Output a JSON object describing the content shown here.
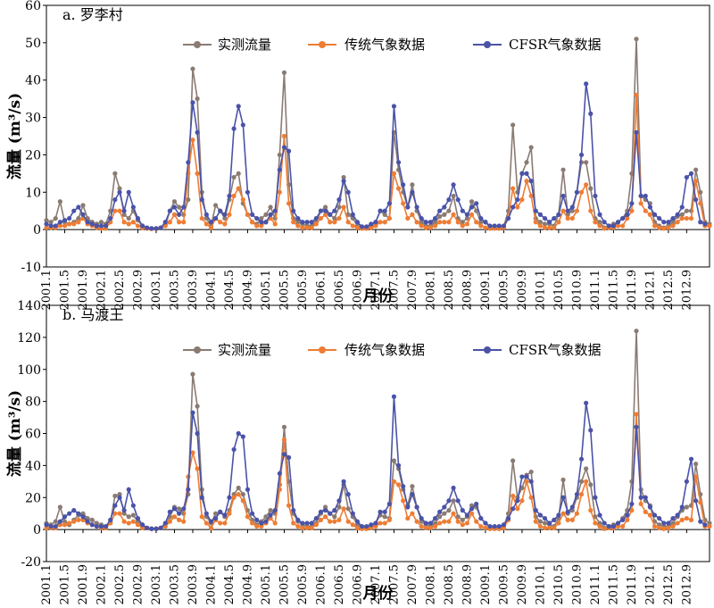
{
  "colors": {
    "observed": "#8a7b72",
    "traditional": "#ee7d34",
    "cfsr": "#4a53a8"
  },
  "chart_data": [
    {
      "type": "line",
      "title": "a. 罗李村",
      "xlabel": "月份",
      "ylabel": "流量 (m³/s)",
      "ylim": [
        -10,
        60
      ],
      "yticks": [
        -10,
        0,
        10,
        20,
        30,
        40,
        50,
        60
      ],
      "grid": false,
      "legend": "top",
      "x_tick_labels": [
        "2001.1",
        "2001.5",
        "2001.9",
        "2002.1",
        "2002.5",
        "2002.9",
        "2003.1",
        "2003.5",
        "2003.9",
        "2004.1",
        "2004.5",
        "2004.9",
        "2005.1",
        "2005.5",
        "2005.9",
        "2006.1",
        "2006.5",
        "2006.9",
        "2007.1",
        "2007.5",
        "2007.9",
        "2008.1",
        "2008.5",
        "2008.9",
        "2009.1",
        "2009.5",
        "2009.9",
        "2010.1",
        "2010.5",
        "2010.9",
        "2011.1",
        "2011.5",
        "2011.9",
        "2012.1",
        "2012.5",
        "2012.9"
      ],
      "series": [
        {
          "name": "实测流量",
          "color_key": "observed",
          "values": [
            2.5,
            2,
            3,
            7.5,
            2,
            1.5,
            2,
            3,
            6.5,
            3,
            2,
            1.5,
            2,
            1.5,
            5,
            15,
            11,
            4,
            3,
            5,
            2.5,
            1,
            0.5,
            0.3,
            0.3,
            0.4,
            1,
            5,
            7.5,
            6,
            4,
            8,
            43,
            35,
            10,
            3,
            1,
            6.5,
            5,
            3,
            8,
            14,
            15,
            7,
            4,
            2,
            1.5,
            3,
            4,
            6,
            3,
            20,
            42,
            12,
            3,
            2,
            1.5,
            1,
            1,
            2,
            5,
            6,
            4,
            3,
            6,
            14,
            4,
            3,
            1,
            0.5,
            0.5,
            1,
            2,
            5,
            4,
            3,
            26,
            16,
            10,
            6,
            12,
            5,
            2,
            1,
            1,
            2,
            3.5,
            4,
            5,
            9,
            3,
            2,
            3,
            7.5,
            5,
            2,
            2,
            0.5,
            0.5,
            0.5,
            0.8,
            5,
            28,
            10,
            15,
            18,
            22,
            3,
            2,
            1.5,
            1.5,
            1,
            4,
            16,
            4,
            5,
            10,
            18,
            18,
            11,
            3,
            2,
            0.5,
            1,
            1.5,
            2,
            3,
            5,
            15,
            51,
            9,
            8,
            7,
            2,
            1,
            0.5,
            1,
            2,
            3.5,
            4,
            5,
            5,
            16,
            10,
            2,
            1.5
          ]
        },
        {
          "name": "传统气象数据",
          "color_key": "traditional",
          "values": [
            0.5,
            0.5,
            0.5,
            1,
            1,
            1.5,
            1.5,
            2,
            3,
            1.5,
            1,
            0.5,
            0.3,
            0.3,
            2,
            5,
            5,
            2,
            1.5,
            2,
            1,
            0.5,
            0.3,
            0.2,
            0.2,
            0.5,
            1,
            2,
            4,
            2,
            2,
            15,
            24,
            15,
            3,
            1.5,
            0.5,
            3,
            2,
            1.5,
            4,
            9,
            11,
            8,
            4,
            2,
            1,
            1,
            2,
            3,
            1.5,
            10,
            25,
            7,
            2,
            1,
            0.5,
            0.5,
            0.5,
            1.5,
            3,
            4,
            2,
            2,
            3,
            6,
            2,
            1,
            0.5,
            0.3,
            0.3,
            0.5,
            1,
            2,
            2,
            3,
            15,
            11,
            7,
            3,
            4,
            2,
            1,
            0.5,
            0.5,
            1,
            2,
            2,
            2,
            4,
            2,
            1,
            1.5,
            4,
            2,
            1,
            0.5,
            0.3,
            0.3,
            0.3,
            0.5,
            3,
            11,
            6,
            8,
            13,
            9,
            2,
            1,
            0.5,
            0.5,
            0.5,
            2,
            5,
            3,
            3,
            5,
            10,
            12,
            5,
            2,
            1,
            0.3,
            0.5,
            0.5,
            1,
            1,
            3,
            5,
            36,
            7,
            5,
            4,
            1,
            0.5,
            0.3,
            0.5,
            1,
            2,
            3,
            3,
            3,
            13,
            7,
            1,
            1
          ]
        },
        {
          "name": "CFSR气象数据",
          "color_key": "cfsr",
          "values": [
            1.5,
            1,
            1,
            2,
            2.5,
            3,
            5,
            6,
            4,
            2,
            1.5,
            1,
            1,
            1,
            3,
            8,
            10,
            5,
            10,
            6,
            3,
            1,
            0.5,
            0.3,
            0.3,
            0.5,
            2,
            5,
            6,
            4,
            6,
            18,
            34,
            26,
            8,
            4,
            2,
            3,
            5,
            4,
            9,
            27,
            33,
            28,
            10,
            4,
            3,
            2,
            2,
            4,
            5,
            16,
            22,
            21,
            5,
            3,
            2,
            2,
            2,
            3,
            5,
            5,
            4,
            5,
            8,
            13,
            10,
            4,
            2,
            0.8,
            0.8,
            1.5,
            2,
            5,
            5,
            7,
            33,
            18,
            12,
            6,
            10,
            6,
            3,
            2,
            2,
            3,
            5,
            6,
            8,
            12,
            8,
            5,
            4,
            6,
            7,
            3,
            2,
            1,
            1,
            1,
            1,
            3,
            6,
            8,
            15,
            15,
            13,
            5,
            4,
            3,
            2,
            3,
            4,
            9,
            5,
            6,
            10,
            20,
            39,
            31,
            9,
            4,
            2,
            1,
            1,
            2,
            3,
            4,
            7,
            26,
            9,
            9,
            6,
            4,
            3,
            2,
            2,
            3,
            4,
            6,
            14,
            15,
            8,
            2,
            1.5
          ]
        }
      ]
    },
    {
      "type": "line",
      "title": "b. 马渡王",
      "xlabel": "月份",
      "ylabel": "流量 (m³/s)",
      "ylim": [
        -20,
        140
      ],
      "yticks": [
        -20,
        0,
        20,
        40,
        60,
        80,
        100,
        120,
        140
      ],
      "grid": false,
      "legend": "top",
      "x_tick_labels": [
        "2001.1",
        "2001.5",
        "2001.9",
        "2002.1",
        "2002.5",
        "2002.9",
        "2003.1",
        "2003.5",
        "2003.9",
        "2004.1",
        "2004.5",
        "2004.9",
        "2005.1",
        "2005.5",
        "2005.9",
        "2006.1",
        "2006.5",
        "2006.9",
        "2007.1",
        "2007.5",
        "2007.9",
        "2008.1",
        "2008.5",
        "2008.9",
        "2009.1",
        "2009.5",
        "2009.9",
        "2010.1",
        "2010.5",
        "2010.9",
        "2011.1",
        "2011.5",
        "2011.9",
        "2012.1",
        "2012.5",
        "2012.9"
      ],
      "series": [
        {
          "name": "实测流量",
          "color_key": "observed",
          "values": [
            4,
            3,
            5,
            14,
            5,
            3,
            6,
            9,
            10,
            7,
            6,
            4,
            3,
            2,
            5,
            21,
            22,
            10,
            8,
            9,
            5,
            3,
            1,
            0.5,
            0.5,
            1,
            2,
            8,
            14,
            13,
            10,
            22,
            97,
            77,
            25,
            8,
            4,
            10,
            11,
            8,
            12,
            22,
            26,
            22,
            12,
            6,
            3,
            5,
            8,
            12,
            10,
            28,
            64,
            30,
            10,
            5,
            3,
            2,
            2,
            4,
            10,
            14,
            10,
            8,
            14,
            28,
            13,
            8,
            3,
            1,
            1,
            2,
            4,
            9,
            8,
            7,
            43,
            38,
            25,
            15,
            27,
            14,
            5,
            3,
            2,
            4,
            8,
            10,
            12,
            18,
            8,
            6,
            8,
            15,
            14,
            7,
            4,
            1,
            1,
            1,
            2,
            10,
            43,
            20,
            26,
            34,
            36,
            8,
            5,
            4,
            3,
            2,
            7,
            31,
            10,
            12,
            20,
            30,
            38,
            28,
            8,
            4,
            1,
            2,
            3,
            4,
            7,
            12,
            30,
            124,
            25,
            18,
            15,
            5,
            3,
            2,
            2,
            4,
            8,
            12,
            14,
            15,
            41,
            22,
            6,
            4
          ]
        },
        {
          "name": "传统气象数据",
          "color_key": "traditional",
          "values": [
            1,
            1,
            1,
            3,
            3,
            4,
            5,
            6,
            6,
            4,
            3,
            2,
            1,
            1,
            4,
            10,
            10,
            5,
            4,
            5,
            3,
            1,
            1,
            0.5,
            0.5,
            1,
            2,
            5,
            8,
            6,
            5,
            33,
            48,
            38,
            8,
            4,
            1,
            6,
            4,
            4,
            10,
            20,
            22,
            18,
            8,
            4,
            2,
            2,
            4,
            7,
            4,
            25,
            56,
            15,
            4,
            2,
            1,
            1,
            1,
            3,
            6,
            8,
            5,
            5,
            6,
            13,
            5,
            3,
            1,
            0.5,
            0.5,
            1,
            2,
            4,
            4,
            6,
            30,
            28,
            18,
            7,
            10,
            5,
            2,
            1,
            1,
            2,
            4,
            5,
            5,
            10,
            5,
            3,
            4,
            10,
            5,
            2,
            1,
            0.5,
            0.5,
            0.5,
            1,
            6,
            21,
            13,
            18,
            30,
            20,
            5,
            2,
            1,
            1,
            1,
            4,
            10,
            6,
            6,
            10,
            22,
            30,
            12,
            4,
            2,
            0.5,
            1,
            1,
            2,
            2,
            6,
            12,
            72,
            16,
            11,
            9,
            2,
            1,
            0.5,
            1,
            2,
            4,
            6,
            7,
            6,
            33,
            17,
            2,
            2
          ]
        },
        {
          "name": "CFSR气象数据",
          "color_key": "cfsr",
          "values": [
            3,
            2,
            2,
            5,
            8,
            10,
            12,
            10,
            8,
            5,
            3,
            2,
            2,
            2,
            6,
            15,
            20,
            12,
            25,
            15,
            7,
            3,
            1,
            0.5,
            0.5,
            1,
            4,
            11,
            13,
            10,
            13,
            25,
            73,
            60,
            20,
            10,
            5,
            7,
            11,
            9,
            20,
            50,
            60,
            58,
            25,
            10,
            6,
            4,
            5,
            9,
            12,
            35,
            47,
            45,
            12,
            6,
            4,
            4,
            4,
            7,
            11,
            12,
            10,
            12,
            18,
            30,
            22,
            10,
            5,
            2,
            2,
            3,
            4,
            11,
            11,
            16,
            83,
            40,
            27,
            14,
            22,
            14,
            7,
            4,
            4,
            7,
            11,
            14,
            18,
            26,
            18,
            12,
            9,
            13,
            16,
            7,
            4,
            2,
            2,
            2,
            3,
            7,
            13,
            18,
            33,
            33,
            30,
            12,
            9,
            7,
            4,
            6,
            9,
            20,
            11,
            14,
            22,
            44,
            79,
            62,
            20,
            9,
            4,
            2,
            2,
            4,
            6,
            9,
            16,
            64,
            20,
            20,
            14,
            9,
            7,
            4,
            4,
            7,
            9,
            14,
            30,
            44,
            18,
            5,
            3
          ]
        }
      ]
    }
  ]
}
